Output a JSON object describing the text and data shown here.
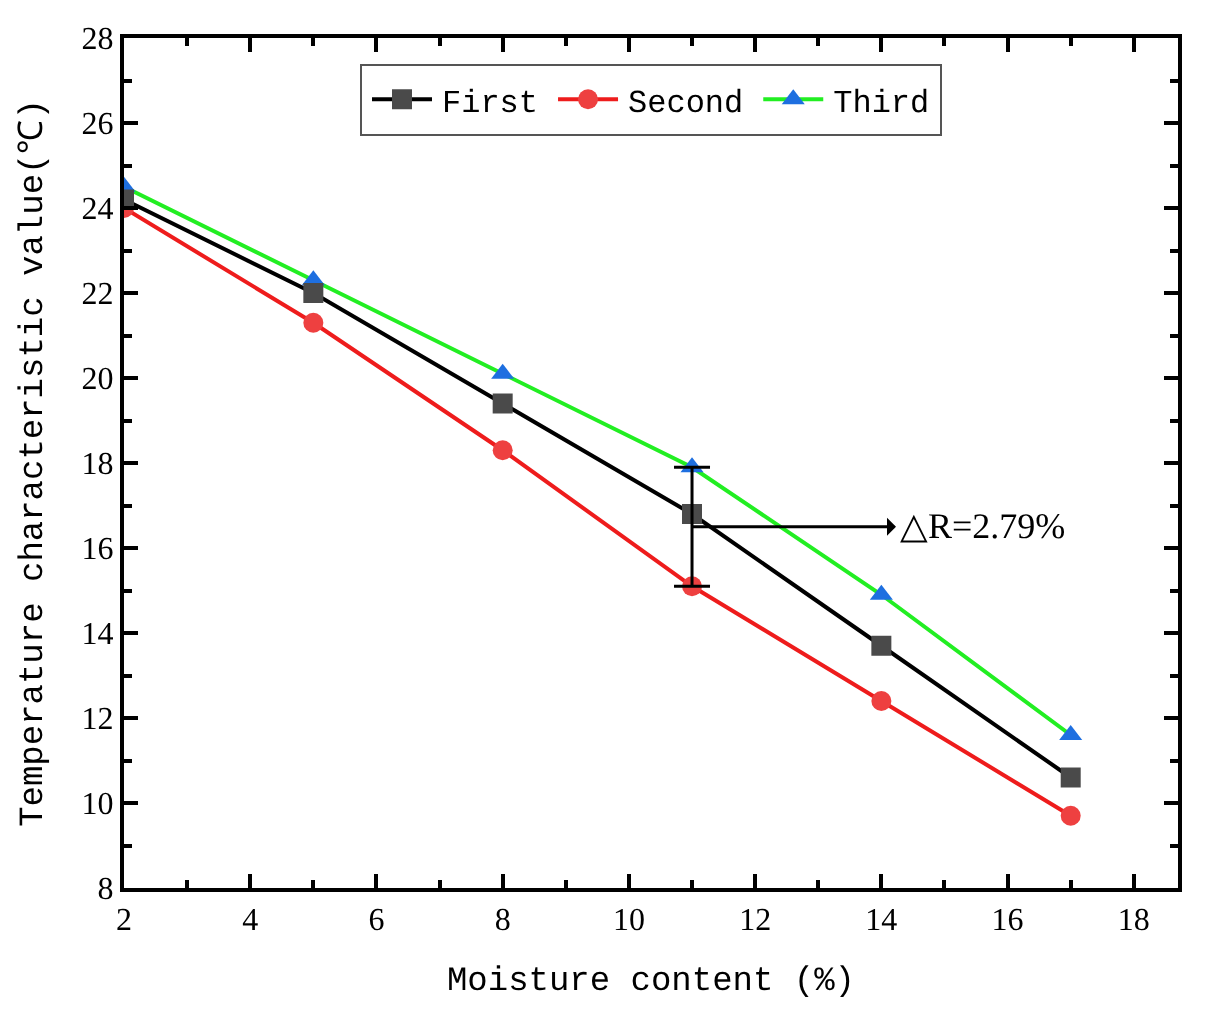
{
  "chart_data": {
    "type": "line",
    "xlabel": "Moisture content (%)",
    "ylabel": "Temperature characteristic value(℃)",
    "x": [
      2,
      5,
      8,
      11,
      14,
      17
    ],
    "series": [
      {
        "name": "First",
        "color": "#000000",
        "colors": [
          "#4a4a4a",
          "#4a4a4a",
          "#4a4a4a",
          "#4a4a4a",
          "#4a4a4a",
          "#4a4a4a"
        ],
        "marker": "square",
        "values": [
          24.2,
          22.0,
          19.4,
          16.8,
          13.7,
          10.6
        ],
        "errors": [
          null,
          null,
          null,
          [
            15.1,
            17.9
          ],
          null,
          null
        ]
      },
      {
        "name": "Second",
        "color": "#ee1c1c",
        "colors": [
          "#ee4040",
          "#ee4040",
          "#ee4040",
          "#ee4040",
          "#ee4040",
          "#ee4040"
        ],
        "marker": "circle",
        "values": [
          24.0,
          21.3,
          18.3,
          15.1,
          12.4,
          9.7
        ]
      },
      {
        "name": "Third",
        "color": "#22ee22",
        "colors": [
          "#1e6fe0",
          "#1e6fe0",
          "#1e6fe0",
          "#1e6fe0",
          "#1e6fe0",
          "#1e6fe0"
        ],
        "marker": "triangle",
        "values": [
          24.5,
          22.3,
          20.1,
          17.9,
          14.9,
          11.6
        ]
      }
    ],
    "xlim": [
      2,
      18.7
    ],
    "xticks": [
      2,
      4,
      6,
      8,
      10,
      12,
      14,
      16,
      18
    ],
    "ylim": [
      8,
      28
    ],
    "yticks": [
      8,
      10,
      12,
      14,
      16,
      18,
      20,
      22,
      24,
      26,
      28
    ],
    "annotations": [
      "△R=2.79%"
    ],
    "legend": "top"
  }
}
